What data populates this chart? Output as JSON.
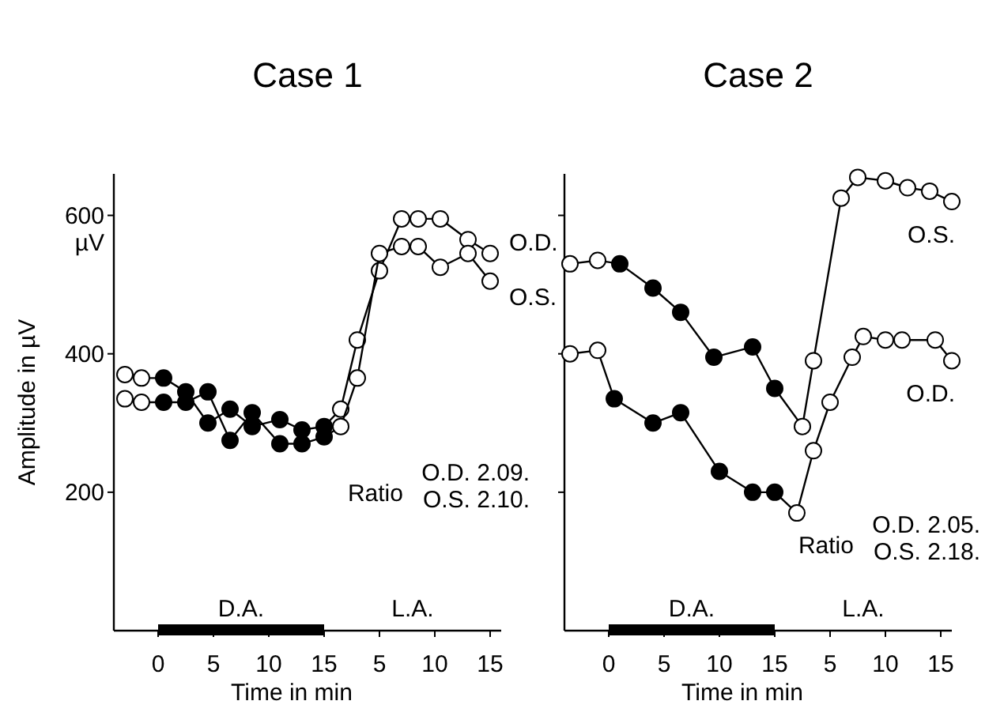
{
  "chart_data": [
    {
      "type": "line",
      "title": "Case 1",
      "xlabel": "Time in min",
      "ylabel": "Amplitude in µV",
      "xlim": [
        -4,
        31
      ],
      "ylim": [
        0,
        660
      ],
      "xticks": [
        0,
        5,
        10,
        15
      ],
      "x2lim": [
        -19,
        16
      ],
      "x2ticks": [
        5,
        10,
        15
      ],
      "yticks": [
        {
          "value": 200,
          "label": "200"
        },
        {
          "value": 400,
          "label": "400"
        },
        {
          "value": 600,
          "label": "600\nµV"
        }
      ],
      "marker": "circle",
      "grid": false,
      "line_style": "solid",
      "annotations": [
        "D.A.",
        "L.A.",
        "Ratio",
        "O.D. 2.09.",
        "O.S. 2.10."
      ],
      "series": [
        {
          "name": "O.D.",
          "color": "#000000",
          "x": [
            -3,
            -1.5,
            0.5,
            2.5,
            4.5,
            6.5,
            8.5,
            11,
            13,
            15,
            16.5,
            18,
            20,
            22,
            23.5,
            25.5,
            28,
            30
          ],
          "values": [
            370,
            365,
            365,
            345,
            300,
            320,
            295,
            305,
            290,
            295,
            320,
            420,
            520,
            595,
            595,
            595,
            565,
            545
          ],
          "colors": [
            "#ffffff",
            "#ffffff",
            "#000000",
            "#000000",
            "#000000",
            "#000000",
            "#000000",
            "#000000",
            "#000000",
            "#000000",
            "#ffffff",
            "#ffffff",
            "#ffffff",
            "#ffffff",
            "#ffffff",
            "#ffffff",
            "#ffffff",
            "#ffffff"
          ]
        },
        {
          "name": "O.S.",
          "color": "#000000",
          "x": [
            -3,
            -1.5,
            0.5,
            2.5,
            4.5,
            6.5,
            8.5,
            11,
            13,
            15,
            16.5,
            18,
            20,
            22,
            23.5,
            25.5,
            28,
            30
          ],
          "values": [
            335,
            330,
            330,
            330,
            345,
            275,
            315,
            270,
            270,
            280,
            295,
            365,
            545,
            555,
            555,
            525,
            545,
            505
          ],
          "colors": [
            "#ffffff",
            "#ffffff",
            "#000000",
            "#000000",
            "#000000",
            "#000000",
            "#000000",
            "#000000",
            "#000000",
            "#000000",
            "#ffffff",
            "#ffffff",
            "#ffffff",
            "#ffffff",
            "#ffffff",
            "#ffffff",
            "#ffffff",
            "#ffffff"
          ]
        }
      ]
    },
    {
      "type": "line",
      "title": "Case 2",
      "xlabel": "Time in min",
      "xlim": [
        -4,
        31
      ],
      "ylim": [
        0,
        660
      ],
      "tick_labels": "x",
      "xticks": [
        0,
        5,
        10,
        15
      ],
      "x2lim": [
        -19,
        16
      ],
      "x2ticks": [
        5,
        10,
        15
      ],
      "yticks": [
        {
          "value": 200,
          "label": null
        },
        {
          "value": 400,
          "label": null
        },
        {
          "value": 600,
          "label": null
        }
      ],
      "marker": "circle",
      "grid": false,
      "line_style": "solid",
      "annotations": [
        "D.A.",
        "L.A.",
        "Ratio",
        "O.D. 2.05.",
        "O.S. 2.18."
      ],
      "series": [
        {
          "name": "O.S.",
          "color": "#000000",
          "x": [
            -3.5,
            -1,
            1,
            4,
            6.5,
            9.5,
            13,
            15,
            17.5,
            18.5,
            21,
            22.5,
            25,
            27,
            29,
            31
          ],
          "values": [
            530,
            535,
            530,
            495,
            460,
            395,
            410,
            350,
            295,
            390,
            625,
            655,
            650,
            640,
            635,
            620
          ],
          "colors": [
            "#ffffff",
            "#ffffff",
            "#000000",
            "#000000",
            "#000000",
            "#000000",
            "#000000",
            "#000000",
            "#ffffff",
            "#ffffff",
            "#ffffff",
            "#ffffff",
            "#ffffff",
            "#ffffff",
            "#ffffff",
            "#ffffff"
          ]
        },
        {
          "name": "O.D.",
          "color": "#000000",
          "x": [
            -3.5,
            -1,
            0.5,
            4,
            6.5,
            10,
            13,
            15,
            17,
            18.5,
            20,
            22,
            23,
            25,
            26.5,
            29.5,
            31
          ],
          "values": [
            400,
            405,
            335,
            300,
            315,
            230,
            200,
            200,
            170,
            260,
            330,
            395,
            425,
            420,
            420,
            420,
            390
          ],
          "colors": [
            "#ffffff",
            "#ffffff",
            "#000000",
            "#000000",
            "#000000",
            "#000000",
            "#000000",
            "#000000",
            "#ffffff",
            "#ffffff",
            "#ffffff",
            "#ffffff",
            "#ffffff",
            "#ffffff",
            "#ffffff",
            "#ffffff",
            "#ffffff"
          ]
        }
      ]
    }
  ]
}
